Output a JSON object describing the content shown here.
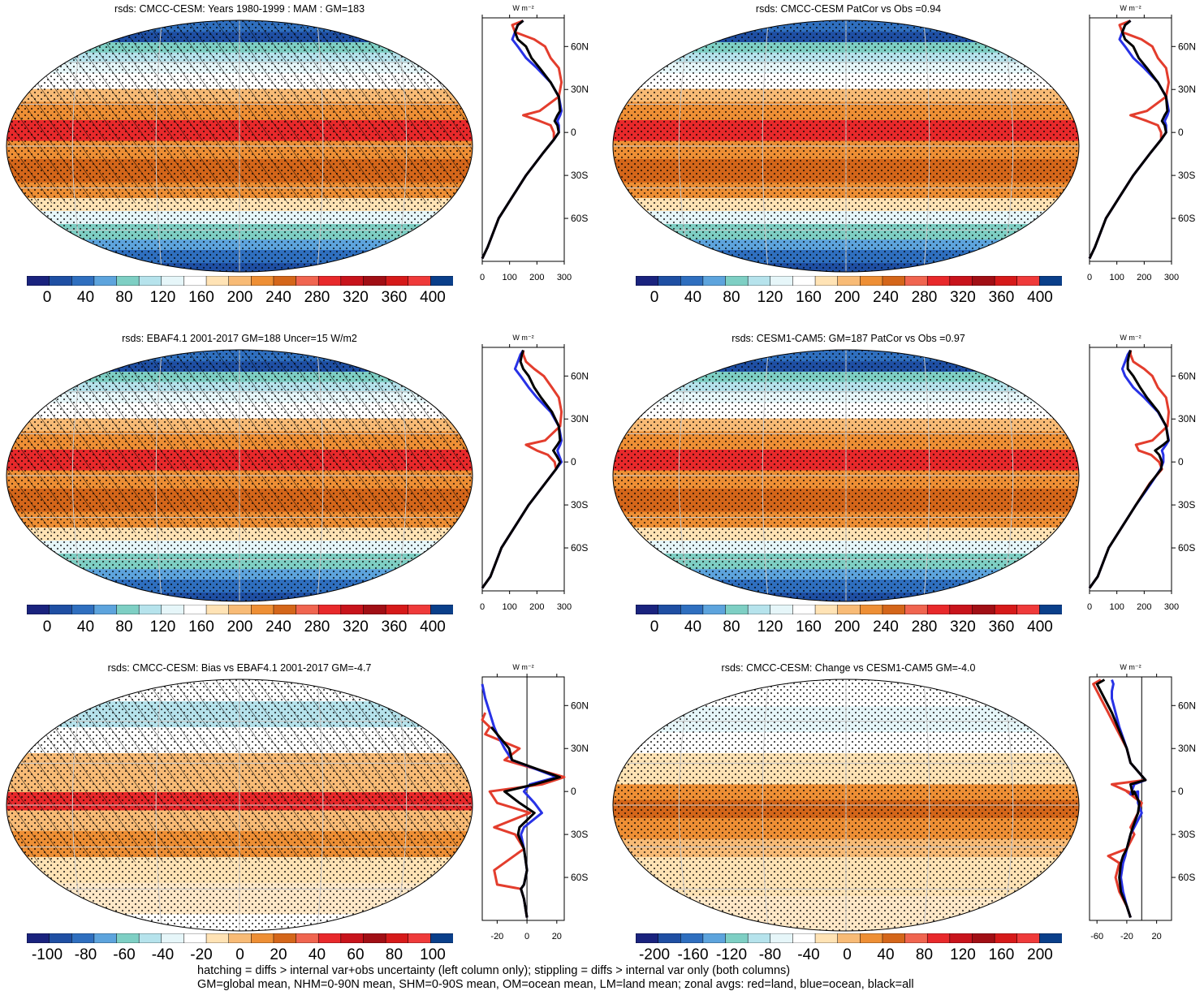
{
  "colors": {
    "scale": [
      "#1a237e",
      "#1f4fa3",
      "#2f6fbf",
      "#5da4dd",
      "#7ecfc4",
      "#b6e3ec",
      "#e6f6f9",
      "#ffffff",
      "#ffe3b5",
      "#f8bb76",
      "#ee8f35",
      "#d4661a",
      "#f06550",
      "#e8292b",
      "#c8141c",
      "#a10f15",
      "#d61a1a",
      "#ef3a3a",
      "#0a3f8a"
    ],
    "land": "#e33d2d",
    "ocean": "#2832e6",
    "all": "#000000",
    "grid": "#c8c8c8"
  },
  "panels": [
    {
      "id": "p1",
      "title": "rsds: CMCC-CESM: Years 1980-1999 : MAM : GM=183",
      "cbar_labels": [
        "0",
        "40",
        "80",
        "120",
        "160",
        "200",
        "240",
        "280",
        "320",
        "360",
        "400"
      ],
      "zonal_xticks": [
        "0",
        "100",
        "200",
        "300"
      ],
      "zonal_lat_labels": [
        "60N",
        "30N",
        "0",
        "30S",
        "60S"
      ],
      "zonal_unit": "W m⁻²",
      "hatching": true,
      "kind": "clim"
    },
    {
      "id": "p2",
      "title": "rsds: CMCC-CESM PatCor vs Obs =0.94",
      "cbar_labels": [
        "0",
        "40",
        "80",
        "120",
        "160",
        "200",
        "240",
        "280",
        "320",
        "360",
        "400"
      ],
      "zonal_xticks": [
        "0",
        "100",
        "200",
        "300"
      ],
      "zonal_lat_labels": [
        "60N",
        "30N",
        "0",
        "30S",
        "60S"
      ],
      "zonal_unit": "W m⁻²",
      "hatching": false,
      "kind": "clim"
    },
    {
      "id": "p3",
      "title": "rsds: EBAF4.1 2001-2017 GM=188 Uncer=15 W/m2",
      "cbar_labels": [
        "0",
        "40",
        "80",
        "120",
        "160",
        "200",
        "240",
        "280",
        "320",
        "360",
        "400"
      ],
      "zonal_xticks": [
        "0",
        "100",
        "200",
        "300"
      ],
      "zonal_lat_labels": [
        "60N",
        "30N",
        "0",
        "30S",
        "60S"
      ],
      "zonal_unit": "W m⁻²",
      "hatching": true,
      "kind": "clim"
    },
    {
      "id": "p4",
      "title": "rsds: CESM1-CAM5: GM=187 PatCor vs Obs =0.97",
      "cbar_labels": [
        "0",
        "40",
        "80",
        "120",
        "160",
        "200",
        "240",
        "280",
        "320",
        "360",
        "400"
      ],
      "zonal_xticks": [
        "0",
        "100",
        "200",
        "300"
      ],
      "zonal_lat_labels": [
        "60N",
        "30N",
        "0",
        "30S",
        "60S"
      ],
      "zonal_unit": "W m⁻²",
      "hatching": false,
      "kind": "clim"
    },
    {
      "id": "p5",
      "title": "rsds: CMCC-CESM: Bias vs EBAF4.1 2001-2017 GM=-4.7",
      "cbar_labels": [
        "-100",
        "-80",
        "-60",
        "-40",
        "-20",
        "0",
        "20",
        "40",
        "60",
        "80",
        "100"
      ],
      "zonal_xticks": [
        "-20",
        "0",
        "20"
      ],
      "zonal_lat_labels": [
        "60N",
        "30N",
        "0",
        "30S",
        "60S"
      ],
      "zonal_unit": "W m⁻²",
      "hatching": true,
      "kind": "bias"
    },
    {
      "id": "p6",
      "title": "rsds: CMCC-CESM: Change vs CESM1-CAM5 GM=-4.0",
      "cbar_labels": [
        "-200",
        "-160",
        "-120",
        "-80",
        "-40",
        "0",
        "40",
        "80",
        "120",
        "160",
        "200"
      ],
      "zonal_xticks": [
        "-60",
        "-20",
        "20"
      ],
      "zonal_lat_labels": [
        "60N",
        "30N",
        "0",
        "30S",
        "60S"
      ],
      "zonal_unit": "W m⁻²",
      "hatching": false,
      "kind": "change"
    }
  ],
  "chart_data": [
    {
      "type": "line",
      "title": "rsds: CMCC-CESM: Years 1980-1999 : MAM : GM=183",
      "xlabel": "W m⁻²",
      "xlim": [
        0,
        300
      ],
      "ylim": [
        -90,
        80
      ],
      "series": [
        {
          "name": "land",
          "x": [
            0,
            20,
            60,
            110,
            160,
            220,
            262,
            262,
            250,
            210,
            150,
            210,
            280,
            290,
            280,
            250,
            230,
            190,
            120,
            110,
            150
          ],
          "y": [
            -88,
            -80,
            -60,
            -45,
            -30,
            -15,
            -5,
            0,
            5,
            8,
            12,
            15,
            25,
            35,
            45,
            52,
            60,
            65,
            70,
            75,
            78
          ]
        },
        {
          "name": "ocean",
          "x": [
            0,
            20,
            60,
            110,
            160,
            220,
            262,
            280,
            280,
            275,
            285,
            290,
            280,
            250,
            200,
            160,
            130,
            110,
            120,
            130,
            150
          ],
          "y": [
            -88,
            -80,
            -60,
            -45,
            -30,
            -15,
            -5,
            0,
            5,
            8,
            12,
            15,
            25,
            35,
            45,
            52,
            60,
            65,
            70,
            75,
            78
          ]
        },
        {
          "name": "all",
          "x": [
            0,
            20,
            60,
            110,
            160,
            220,
            262,
            280,
            275,
            265,
            275,
            285,
            280,
            250,
            210,
            180,
            160,
            130,
            120,
            130,
            150
          ],
          "y": [
            -88,
            -80,
            -60,
            -45,
            -30,
            -15,
            -5,
            0,
            5,
            8,
            12,
            15,
            25,
            35,
            45,
            52,
            60,
            65,
            70,
            75,
            78
          ]
        }
      ]
    },
    {
      "type": "line",
      "title": "rsds: CMCC-CESM PatCor vs Obs =0.94",
      "xlabel": "W m⁻²",
      "xlim": [
        0,
        300
      ],
      "ylim": [
        -90,
        80
      ],
      "series": [
        {
          "name": "land",
          "x": [
            0,
            20,
            60,
            110,
            160,
            220,
            262,
            262,
            250,
            210,
            150,
            210,
            280,
            290,
            280,
            250,
            230,
            190,
            120,
            110,
            150
          ],
          "y": [
            -88,
            -80,
            -60,
            -45,
            -30,
            -15,
            -5,
            0,
            5,
            8,
            12,
            15,
            25,
            35,
            45,
            52,
            60,
            65,
            70,
            75,
            78
          ]
        },
        {
          "name": "ocean",
          "x": [
            0,
            20,
            60,
            110,
            160,
            220,
            262,
            280,
            280,
            275,
            285,
            290,
            280,
            250,
            200,
            160,
            130,
            110,
            120,
            130,
            150
          ],
          "y": [
            -88,
            -80,
            -60,
            -45,
            -30,
            -15,
            -5,
            0,
            5,
            8,
            12,
            15,
            25,
            35,
            45,
            52,
            60,
            65,
            70,
            75,
            78
          ]
        },
        {
          "name": "all",
          "x": [
            0,
            20,
            60,
            110,
            160,
            220,
            262,
            280,
            275,
            265,
            275,
            285,
            280,
            250,
            210,
            180,
            160,
            130,
            120,
            130,
            150
          ],
          "y": [
            -88,
            -80,
            -60,
            -45,
            -30,
            -15,
            -5,
            0,
            5,
            8,
            12,
            15,
            25,
            35,
            45,
            52,
            60,
            65,
            70,
            75,
            78
          ]
        }
      ]
    },
    {
      "type": "line",
      "title": "rsds: EBAF4.1 2001-2017 GM=188 Uncer=15 W/m2",
      "xlabel": "W m⁻²",
      "xlim": [
        0,
        300
      ],
      "ylim": [
        -90,
        80
      ],
      "series": [
        {
          "name": "land",
          "x": [
            0,
            30,
            70,
            120,
            170,
            230,
            270,
            265,
            240,
            200,
            160,
            230,
            285,
            290,
            280,
            255,
            225,
            190,
            160,
            150,
            150
          ],
          "y": [
            -88,
            -80,
            -60,
            -45,
            -30,
            -15,
            -5,
            0,
            5,
            8,
            12,
            15,
            25,
            35,
            45,
            52,
            60,
            65,
            70,
            75,
            78
          ]
        },
        {
          "name": "ocean",
          "x": [
            0,
            30,
            70,
            120,
            170,
            230,
            270,
            290,
            280,
            275,
            285,
            290,
            280,
            250,
            200,
            170,
            140,
            120,
            130,
            140,
            150
          ],
          "y": [
            -88,
            -80,
            -60,
            -45,
            -30,
            -15,
            -5,
            0,
            5,
            8,
            12,
            15,
            25,
            35,
            45,
            52,
            60,
            65,
            70,
            75,
            78
          ]
        },
        {
          "name": "all",
          "x": [
            0,
            30,
            70,
            120,
            170,
            230,
            270,
            285,
            270,
            260,
            275,
            285,
            280,
            255,
            215,
            190,
            170,
            150,
            140,
            145,
            150
          ],
          "y": [
            -88,
            -80,
            -60,
            -45,
            -30,
            -15,
            -5,
            0,
            5,
            8,
            12,
            15,
            25,
            35,
            45,
            52,
            60,
            65,
            70,
            75,
            78
          ]
        }
      ]
    },
    {
      "type": "line",
      "title": "rsds: CESM1-CAM5: GM=187 PatCor vs Obs =0.97",
      "xlabel": "W m⁻²",
      "xlim": [
        0,
        300
      ],
      "ylim": [
        -90,
        80
      ],
      "series": [
        {
          "name": "land",
          "x": [
            0,
            30,
            70,
            120,
            170,
            220,
            265,
            255,
            225,
            180,
            170,
            230,
            285,
            290,
            280,
            250,
            230,
            200,
            160,
            150,
            150
          ],
          "y": [
            -88,
            -80,
            -60,
            -45,
            -30,
            -15,
            -5,
            0,
            5,
            8,
            12,
            15,
            25,
            35,
            45,
            52,
            60,
            65,
            70,
            75,
            78
          ]
        },
        {
          "name": "ocean",
          "x": [
            0,
            30,
            70,
            120,
            170,
            225,
            260,
            270,
            270,
            265,
            280,
            290,
            280,
            250,
            200,
            160,
            130,
            120,
            130,
            140,
            150
          ],
          "y": [
            -88,
            -80,
            -60,
            -45,
            -30,
            -15,
            -5,
            0,
            5,
            8,
            12,
            15,
            25,
            35,
            45,
            52,
            60,
            65,
            70,
            75,
            78
          ]
        },
        {
          "name": "all",
          "x": [
            0,
            30,
            70,
            120,
            170,
            222,
            262,
            265,
            255,
            240,
            270,
            288,
            280,
            252,
            210,
            185,
            160,
            140,
            140,
            145,
            150
          ],
          "y": [
            -88,
            -80,
            -60,
            -45,
            -30,
            -15,
            -5,
            0,
            5,
            8,
            12,
            15,
            25,
            35,
            45,
            52,
            60,
            65,
            70,
            75,
            78
          ]
        }
      ]
    },
    {
      "type": "line",
      "title": "rsds: CMCC-CESM: Bias vs EBAF4.1 2001-2017 GM=-4.7",
      "xlabel": "W m⁻²",
      "xlim": [
        -30,
        25
      ],
      "ylim": [
        -90,
        80
      ],
      "series": [
        {
          "name": "land",
          "x": [
            0,
            -2,
            -4,
            -20,
            -22,
            -2,
            -8,
            -22,
            2,
            -20,
            -25,
            10,
            25,
            -15,
            -5,
            -28,
            -25,
            -30,
            -28
          ],
          "y": [
            -88,
            -75,
            -68,
            -65,
            -55,
            -40,
            -30,
            -25,
            -15,
            -8,
            0,
            5,
            10,
            22,
            30,
            40,
            45,
            50,
            55
          ]
        },
        {
          "name": "ocean",
          "x": [
            0,
            -2,
            -4,
            -2,
            0,
            -2,
            -4,
            -2,
            10,
            5,
            -2,
            2,
            20,
            -10,
            -15,
            -20,
            -22,
            -25,
            -28,
            -30
          ],
          "y": [
            -88,
            -75,
            -68,
            -65,
            -55,
            -40,
            -30,
            -25,
            -15,
            -8,
            0,
            5,
            10,
            22,
            30,
            40,
            45,
            55,
            65,
            75
          ]
        },
        {
          "name": "all",
          "x": [
            0,
            -2,
            -4,
            -2,
            0,
            -2,
            -6,
            -5,
            5,
            -5,
            -15,
            5,
            22,
            -10,
            -12,
            -20,
            -24
          ],
          "y": [
            -88,
            -75,
            -68,
            -65,
            -55,
            -40,
            -30,
            -25,
            -15,
            -8,
            0,
            5,
            10,
            22,
            30,
            40,
            45
          ]
        }
      ]
    },
    {
      "type": "line",
      "title": "rsds: CMCC-CESM: Change vs CESM1-CAM5 GM=-4.0",
      "xlabel": "W m⁻²",
      "xlim": [
        -70,
        40
      ],
      "ylim": [
        -90,
        80
      ],
      "series": [
        {
          "name": "land",
          "x": [
            -15,
            -20,
            -30,
            -35,
            -30,
            -45,
            -20,
            -10,
            -15,
            -5,
            0,
            -20,
            -10,
            -40,
            5,
            -15,
            -20,
            -35,
            -45,
            -55,
            -60,
            -65,
            -55
          ],
          "y": [
            -88,
            -80,
            -70,
            -60,
            -50,
            -45,
            -40,
            -30,
            -25,
            -15,
            -8,
            0,
            -2,
            5,
            8,
            20,
            30,
            45,
            55,
            65,
            70,
            75,
            78
          ]
        },
        {
          "name": "ocean",
          "x": [
            -15,
            -20,
            -25,
            -28,
            -25,
            -22,
            -20,
            -15,
            -10,
            0,
            -5,
            -5,
            -15,
            -10,
            5,
            -15,
            -20,
            -30,
            -35,
            -40,
            -40,
            -38,
            -40
          ],
          "y": [
            -88,
            -80,
            -70,
            -60,
            -50,
            -45,
            -40,
            -30,
            -25,
            -15,
            -8,
            0,
            -2,
            5,
            8,
            20,
            30,
            45,
            55,
            65,
            70,
            75,
            78
          ]
        },
        {
          "name": "all",
          "x": [
            -15,
            -20,
            -28,
            -30,
            -28,
            -25,
            -20,
            -15,
            -12,
            -5,
            -3,
            -10,
            -12,
            -15,
            5,
            -15,
            -20,
            -32,
            -40,
            -50,
            -55,
            -60,
            -50
          ],
          "y": [
            -88,
            -80,
            -70,
            -60,
            -50,
            -45,
            -40,
            -30,
            -25,
            -15,
            -8,
            0,
            -2,
            5,
            8,
            20,
            30,
            45,
            55,
            65,
            70,
            75,
            78
          ]
        }
      ]
    }
  ],
  "footer": {
    "line1": "hatching = diffs > internal var+obs uncertainty (left column only); stippling = diffs > internal var only (both columns)",
    "line2": "GM=global mean, NHM=0-90N mean, SHM=0-90S mean, OM=ocean mean, LM=land mean; zonal avgs: red=land, blue=ocean, black=all"
  }
}
